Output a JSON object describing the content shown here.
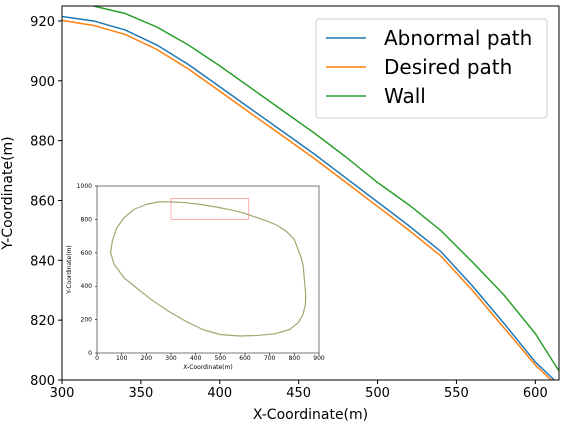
{
  "chart_data": [
    {
      "type": "line",
      "title": "",
      "xlabel": "X-Coordinate(m)",
      "ylabel": "Y-Coordinate(m)",
      "xlim": [
        300,
        615
      ],
      "ylim": [
        800,
        925
      ],
      "xticks": [
        300,
        350,
        400,
        450,
        500,
        550,
        600
      ],
      "yticks": [
        800,
        820,
        840,
        860,
        880,
        900,
        920
      ],
      "grid": false,
      "legend_position": "top-right",
      "series": [
        {
          "name": "Abnormal path",
          "color": "#1f77b4",
          "x": [
            300,
            320,
            340,
            360,
            380,
            400,
            420,
            440,
            460,
            480,
            500,
            520,
            540,
            560,
            580,
            600,
            612
          ],
          "y": [
            921.5,
            920,
            917,
            912,
            905.5,
            898,
            890.5,
            883,
            875.5,
            867.5,
            859.5,
            851.5,
            843,
            831.5,
            819,
            806,
            800
          ]
        },
        {
          "name": "Desired path",
          "color": "#ff7f0e",
          "x": [
            300,
            320,
            340,
            360,
            380,
            400,
            420,
            440,
            460,
            480,
            500,
            520,
            540,
            560,
            580,
            600,
            610
          ],
          "y": [
            920.2,
            918.5,
            915.5,
            910.5,
            904,
            896.5,
            889,
            881.5,
            874,
            866,
            858,
            850,
            841.5,
            830,
            817.5,
            805,
            800
          ]
        },
        {
          "name": "Wall",
          "color": "#2ca02c",
          "x": [
            320,
            340,
            360,
            380,
            400,
            420,
            440,
            460,
            480,
            500,
            520,
            540,
            560,
            580,
            600,
            615
          ],
          "y": [
            925,
            922.5,
            918,
            912,
            905,
            897.5,
            890,
            882.5,
            874.5,
            866,
            858.5,
            850,
            839.5,
            828.5,
            815.5,
            803
          ]
        }
      ]
    },
    {
      "type": "line",
      "title": "",
      "xlabel": "X-Coordinate(m)",
      "ylabel": "Y-Coordinate(m)",
      "xlim": [
        0,
        900
      ],
      "ylim": [
        0,
        1000
      ],
      "xticks": [
        0,
        100,
        200,
        300,
        400,
        500,
        600,
        700,
        800,
        900
      ],
      "yticks": [
        0,
        200,
        400,
        600,
        800,
        1000
      ],
      "grid": false,
      "highlight_region": {
        "x": [
          300,
          615
        ],
        "y": [
          800,
          925
        ],
        "color": "#ff9999"
      },
      "series": [
        {
          "color": "#a0a870",
          "x": [
            300,
            360,
            420,
            480,
            540,
            590,
            630,
            680,
            730,
            770,
            800,
            815,
            828,
            836,
            840,
            846,
            845,
            835,
            815,
            780,
            720,
            650,
            580,
            500,
            430,
            360,
            290,
            220,
            160,
            110,
            70,
            55,
            62,
            80,
            110,
            150,
            200,
            250,
            300
          ],
          "y": [
            905,
            900,
            890,
            875,
            858,
            840,
            820,
            795,
            765,
            725,
            680,
            620,
            570,
            520,
            450,
            350,
            290,
            230,
            180,
            140,
            115,
            105,
            102,
            110,
            140,
            190,
            250,
            320,
            390,
            450,
            530,
            600,
            670,
            750,
            810,
            860,
            890,
            905,
            905
          ]
        }
      ]
    }
  ]
}
